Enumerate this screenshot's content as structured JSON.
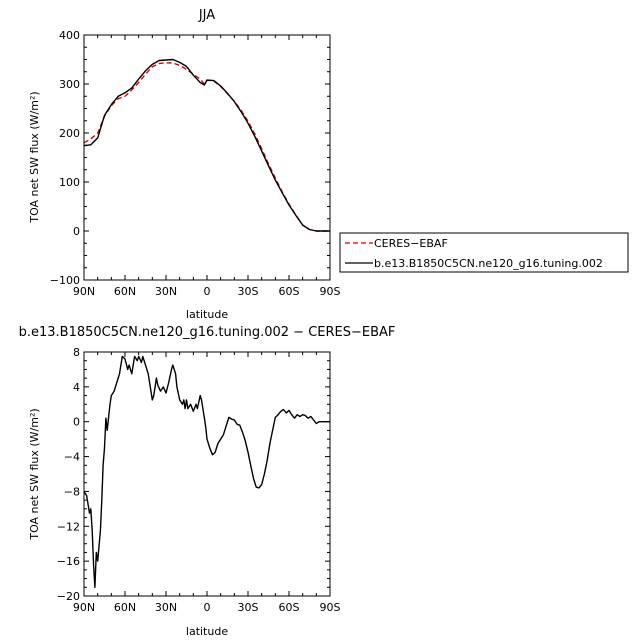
{
  "chart_data": [
    {
      "type": "line",
      "title": "JJA",
      "xlabel": "latitude",
      "ylabel": "TOA net SW flux (W/m²)",
      "xlim": [
        90,
        -90
      ],
      "ylim": [
        -100,
        400
      ],
      "x_ticks": [
        "90N",
        "60N",
        "30N",
        "0",
        "30S",
        "60S",
        "90S"
      ],
      "y_ticks": [
        "400",
        "300",
        "200",
        "100",
        "0",
        "−100"
      ],
      "legend_position": "right",
      "series": [
        {
          "name": "CERES−EBAF",
          "color": "#dd0000",
          "dash": "dashed",
          "x": [
            90,
            85,
            80,
            75,
            70,
            65,
            60,
            55,
            50,
            45,
            40,
            35,
            30,
            25,
            20,
            15,
            10,
            5,
            2,
            0,
            -5,
            -10,
            -15,
            -20,
            -25,
            -30,
            -35,
            -40,
            -45,
            -50,
            -55,
            -60,
            -65,
            -70,
            -75,
            -80,
            -85,
            -90
          ],
          "y": [
            180,
            188,
            200,
            234,
            256,
            270,
            275,
            288,
            303,
            320,
            335,
            342,
            343,
            343,
            338,
            330,
            320,
            310,
            300,
            308,
            306,
            295,
            280,
            265,
            246,
            224,
            198,
            168,
            137,
            108,
            80,
            55,
            33,
            12,
            3,
            0,
            0,
            0
          ]
        },
        {
          "name": "b.e13.B1850C5CN.ne120_g16.tuning.002",
          "color": "#000000",
          "dash": "solid",
          "x": [
            90,
            85,
            80,
            75,
            70,
            65,
            60,
            55,
            50,
            45,
            40,
            35,
            30,
            25,
            20,
            15,
            10,
            5,
            2,
            0,
            -5,
            -10,
            -15,
            -20,
            -25,
            -30,
            -35,
            -40,
            -45,
            -50,
            -55,
            -60,
            -65,
            -70,
            -75,
            -80,
            -85,
            -90
          ],
          "y": [
            174,
            176,
            190,
            236,
            258,
            275,
            282,
            292,
            310,
            327,
            340,
            348,
            349,
            350,
            344,
            336,
            318,
            303,
            298,
            308,
            307,
            296,
            281,
            264,
            243,
            220,
            193,
            163,
            133,
            104,
            78,
            53,
            32,
            12,
            3,
            0,
            0,
            0
          ]
        }
      ]
    },
    {
      "type": "line",
      "title": "b.e13.B1850C5CN.ne120_g16.tuning.002 − CERES−EBAF",
      "xlabel": "latitude",
      "ylabel": "TOA net SW flux (W/m²)",
      "xlim": [
        90,
        -90
      ],
      "ylim": [
        -20,
        8
      ],
      "x_ticks": [
        "90N",
        "60N",
        "30N",
        "0",
        "30S",
        "60S",
        "90S"
      ],
      "y_ticks": [
        "8",
        "4",
        "0",
        "−4",
        "−8",
        "−12",
        "−16",
        "−20"
      ],
      "series": [
        {
          "color": "#000000",
          "x": [
            90,
            88,
            86,
            85,
            84,
            83,
            82,
            81,
            80,
            78,
            77,
            76,
            75,
            74,
            73,
            72,
            71,
            70,
            68,
            66,
            64,
            62,
            60,
            58,
            57,
            55,
            53,
            51,
            50,
            48,
            47,
            45,
            43,
            42,
            40,
            39,
            38,
            37,
            36,
            34,
            32,
            30,
            28,
            26,
            25,
            23,
            22,
            20,
            18,
            17,
            16,
            15,
            14,
            12,
            10,
            8,
            7,
            5,
            4,
            3,
            2,
            1,
            0,
            -2,
            -4,
            -6,
            -8,
            -10,
            -12,
            -14,
            -16,
            -18,
            -20,
            -22,
            -24,
            -26,
            -28,
            -30,
            -32,
            -34,
            -36,
            -38,
            -40,
            -42,
            -44,
            -46,
            -48,
            -50,
            -52,
            -54,
            -56,
            -58,
            -60,
            -62,
            -64,
            -66,
            -68,
            -70,
            -72,
            -74,
            -76,
            -78,
            -80,
            -82,
            -84,
            -86,
            -88,
            -90
          ],
          "y": [
            -8,
            -8.5,
            -10.5,
            -10,
            -12.5,
            -16.5,
            -19,
            -15,
            -16,
            -12.5,
            -9,
            -5,
            -3,
            0.4,
            -1,
            0.5,
            2,
            3,
            3.5,
            4.5,
            5.5,
            7.5,
            7.2,
            6,
            6.5,
            5.5,
            7.5,
            7,
            7.5,
            6.8,
            7.5,
            6.5,
            5.5,
            4.5,
            2.5,
            3,
            4,
            5,
            4.2,
            3.5,
            4,
            3.3,
            4.5,
            6,
            6.5,
            5.5,
            4,
            2.5,
            2,
            2.5,
            1.5,
            2.5,
            1.5,
            2,
            1.2,
            2,
            1.5,
            3,
            2.5,
            1.5,
            0.5,
            -0.5,
            -2,
            -3,
            -3.8,
            -3.5,
            -2.5,
            -2,
            -1.5,
            -0.5,
            0.5,
            0.3,
            0.2,
            -0.3,
            -0.4,
            -1.2,
            -2.2,
            -3.5,
            -5,
            -6.5,
            -7.5,
            -7.6,
            -7.2,
            -6,
            -4.5,
            -2.5,
            -1,
            0.5,
            0.8,
            1.2,
            1.4,
            1,
            1.3,
            0.8,
            0.4,
            0.8,
            0.6,
            0.8,
            0.7,
            0.4,
            0.6,
            0.2,
            -0.2,
            0,
            0,
            0,
            0,
            0
          ]
        }
      ]
    }
  ]
}
